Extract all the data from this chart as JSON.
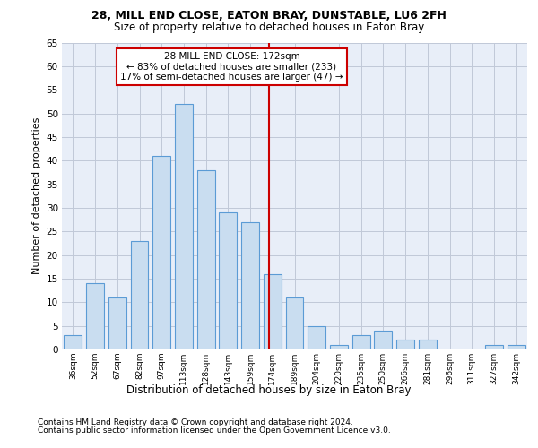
{
  "title1": "28, MILL END CLOSE, EATON BRAY, DUNSTABLE, LU6 2FH",
  "title2": "Size of property relative to detached houses in Eaton Bray",
  "xlabel": "Distribution of detached houses by size in Eaton Bray",
  "ylabel": "Number of detached properties",
  "categories": [
    "36sqm",
    "52sqm",
    "67sqm",
    "82sqm",
    "97sqm",
    "113sqm",
    "128sqm",
    "143sqm",
    "159sqm",
    "174sqm",
    "189sqm",
    "204sqm",
    "220sqm",
    "235sqm",
    "250sqm",
    "266sqm",
    "281sqm",
    "296sqm",
    "311sqm",
    "327sqm",
    "342sqm"
  ],
  "values": [
    3,
    14,
    11,
    23,
    41,
    52,
    38,
    29,
    27,
    16,
    11,
    5,
    1,
    3,
    4,
    2,
    2,
    0,
    0,
    1,
    1
  ],
  "bar_color": "#c9ddf0",
  "bar_edge_color": "#5b9bd5",
  "bar_width": 0.8,
  "vline_color": "#cc0000",
  "annotation_text": "28 MILL END CLOSE: 172sqm\n← 83% of detached houses are smaller (233)\n17% of semi-detached houses are larger (47) →",
  "annotation_box_color": "#ffffff",
  "annotation_box_edge_color": "#cc0000",
  "ylim": [
    0,
    65
  ],
  "yticks": [
    0,
    5,
    10,
    15,
    20,
    25,
    30,
    35,
    40,
    45,
    50,
    55,
    60,
    65
  ],
  "grid_color": "#c0c8d8",
  "bg_color": "#e8eef8",
  "footer1": "Contains HM Land Registry data © Crown copyright and database right 2024.",
  "footer2": "Contains public sector information licensed under the Open Government Licence v3.0."
}
